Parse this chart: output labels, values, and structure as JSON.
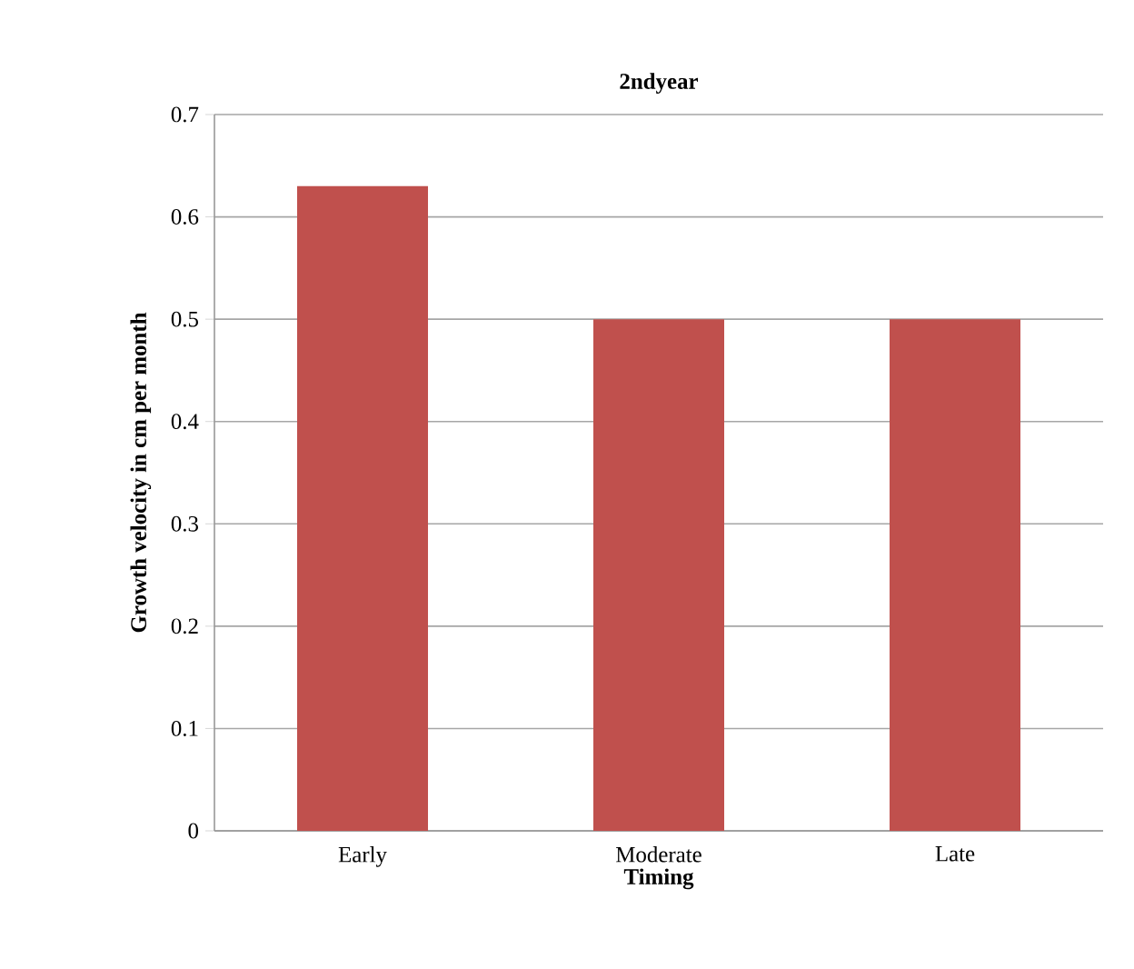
{
  "chart_data": {
    "type": "bar",
    "title": "2ndyear",
    "xlabel": "Timing",
    "ylabel": "Growth  velocity  in  cm per  month",
    "categories": [
      "Early",
      "Moderate",
      "Late"
    ],
    "values": [
      0.63,
      0.5,
      0.5
    ],
    "color": "#c0504d",
    "ylim": [
      0,
      0.7
    ],
    "yticks": [
      0,
      0.1,
      0.2,
      0.3,
      0.4,
      0.5,
      0.6,
      0.7
    ],
    "grid": "y"
  }
}
